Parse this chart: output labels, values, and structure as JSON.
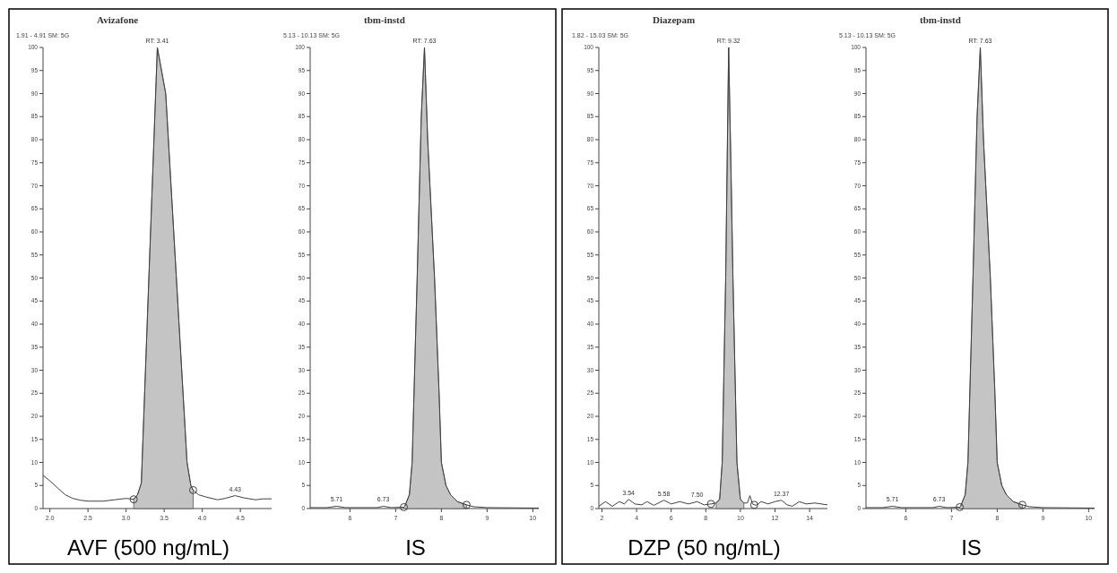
{
  "chart_data": [
    {
      "type": "line",
      "title": "Avizafone",
      "subtitle": "1.91 - 4.91  SM: 5G",
      "xlabel": "AVF (500 ng/mL)",
      "xlim": [
        1.91,
        4.91
      ],
      "xticks": [
        {
          "value": 2,
          "label": "2.0"
        },
        2.5,
        {
          "value": 3,
          "label": "3.0"
        },
        3.5,
        {
          "value": 4,
          "label": "4.0"
        },
        4.5
      ],
      "ylim": [
        0,
        100
      ],
      "yticks": [
        0,
        5,
        10,
        15,
        20,
        25,
        30,
        35,
        40,
        45,
        50,
        55,
        60,
        65,
        70,
        75,
        80,
        85,
        90,
        95,
        100
      ],
      "series": [
        {
          "type": "area",
          "color": "#c4c4c4",
          "x": [
            3.1,
            3.15,
            3.2,
            3.41,
            3.52,
            3.8,
            3.85,
            3.88
          ],
          "values": [
            2.0,
            3,
            5.5,
            100,
            90,
            10,
            5,
            4
          ]
        },
        {
          "type": "line",
          "color": "#404040",
          "x": [
            1.91,
            2.0,
            2.1,
            2.2,
            2.3,
            2.4,
            2.5,
            2.7,
            2.85,
            3.0,
            3.1,
            3.15,
            3.2,
            3.41,
            3.52,
            3.8,
            3.85,
            3.88,
            3.95,
            4.05,
            4.2,
            4.3,
            4.43,
            4.55,
            4.7,
            4.8,
            4.91
          ],
          "values": [
            7.2,
            6,
            4.5,
            3,
            2.2,
            1.8,
            1.6,
            1.6,
            1.9,
            2.2,
            2.0,
            3,
            5.5,
            100,
            90,
            10,
            5,
            4,
            3,
            2.5,
            1.9,
            2.2,
            2.8,
            2.3,
            1.9,
            2.1,
            2.1
          ]
        },
        {
          "type": "scatter",
          "marker": "circle",
          "color": "#404040",
          "x": [
            3.1,
            3.88
          ],
          "values": [
            2.0,
            4
          ]
        }
      ],
      "annotations": [
        {
          "text": "RT: 3.41",
          "x": 3.41,
          "y": 100
        },
        {
          "text": "4.43",
          "x": 4.43,
          "y": 2.8
        }
      ]
    },
    {
      "type": "line",
      "title": "tbm-instd",
      "subtitle": "5.13 - 10.13  SM: 5G",
      "xlabel": "IS",
      "xlim": [
        5.13,
        10.13
      ],
      "xticks": [
        6,
        7,
        8,
        9,
        10
      ],
      "ylim": [
        0,
        100
      ],
      "yticks": [
        0,
        5,
        10,
        15,
        20,
        25,
        30,
        35,
        40,
        45,
        50,
        55,
        60,
        65,
        70,
        75,
        80,
        85,
        90,
        95,
        100
      ],
      "series": [
        {
          "type": "area",
          "color": "#c4c4c4",
          "x": [
            7.18,
            7.2,
            7.3,
            7.36,
            7.47,
            7.56,
            7.63,
            7.7,
            7.85,
            7.95,
            8.0,
            8.1,
            8.2,
            8.35,
            8.55
          ],
          "values": [
            0.3,
            0.5,
            3,
            10,
            50,
            85,
            100,
            80,
            50,
            25,
            10,
            5,
            3,
            1.5,
            0.8
          ]
        },
        {
          "type": "line",
          "color": "#404040",
          "x": [
            5.13,
            5.5,
            5.71,
            5.9,
            6.3,
            6.6,
            6.73,
            6.9,
            7.18,
            7.2,
            7.3,
            7.36,
            7.47,
            7.56,
            7.63,
            7.7,
            7.85,
            7.95,
            8.0,
            8.1,
            8.2,
            8.35,
            8.55,
            8.7,
            9.0,
            10.13
          ],
          "values": [
            0.2,
            0.2,
            0.5,
            0.2,
            0.2,
            0.2,
            0.5,
            0.2,
            0.3,
            0.5,
            3,
            10,
            50,
            85,
            100,
            80,
            50,
            25,
            10,
            5,
            3,
            1.5,
            0.8,
            0.4,
            0.2,
            0.1
          ]
        },
        {
          "type": "scatter",
          "marker": "circle",
          "color": "#404040",
          "x": [
            7.18,
            8.55
          ],
          "values": [
            0.3,
            0.8
          ]
        }
      ],
      "annotations": [
        {
          "text": "RT: 7.63",
          "x": 7.63,
          "y": 100
        },
        {
          "text": "5.71",
          "x": 5.71,
          "y": 0.5
        },
        {
          "text": "6.73",
          "x": 6.73,
          "y": 0.5
        }
      ]
    },
    {
      "type": "line",
      "title": "Diazepam",
      "subtitle": "1.82 - 15.03  SM: 5G",
      "xlabel": "DZP (50 ng/mL)",
      "xlim": [
        1.82,
        15.03
      ],
      "xticks": [
        2,
        4,
        6,
        8,
        10,
        12,
        14
      ],
      "ylim": [
        0,
        100
      ],
      "yticks": [
        0,
        5,
        10,
        15,
        20,
        25,
        30,
        35,
        40,
        45,
        50,
        55,
        60,
        65,
        70,
        75,
        80,
        85,
        90,
        95,
        100
      ],
      "series": [
        {
          "type": "area",
          "color": "#c4c4c4",
          "x": [
            8.6,
            8.8,
            8.95,
            9.15,
            9.32,
            9.45,
            9.57,
            9.8,
            10.0,
            10.2
          ],
          "values": [
            1.2,
            2,
            10,
            50,
            100,
            75,
            50,
            10,
            2,
            1.2
          ]
        },
        {
          "type": "line",
          "color": "#404040",
          "x": [
            1.82,
            2.2,
            2.6,
            3.0,
            3.3,
            3.54,
            3.9,
            4.3,
            4.6,
            5.0,
            5.58,
            6.0,
            6.5,
            7.0,
            7.5,
            7.9,
            8.3,
            8.6,
            8.8,
            8.95,
            9.15,
            9.32,
            9.45,
            9.57,
            9.8,
            10.0,
            10.2,
            10.4,
            10.55,
            10.7,
            10.9,
            11.2,
            11.6,
            12.0,
            12.37,
            12.7,
            13.0,
            13.4,
            13.8,
            14.3,
            15.03
          ],
          "values": [
            0.5,
            1.5,
            0.5,
            1.5,
            1,
            2,
            1,
            0.8,
            1.5,
            0.7,
            1.8,
            1,
            1.5,
            1,
            1.5,
            0.8,
            1,
            1.2,
            2,
            10,
            50,
            100,
            75,
            50,
            10,
            2,
            1.2,
            1.2,
            2.8,
            1,
            0.7,
            1.5,
            1,
            1.5,
            1.8,
            0.8,
            0.5,
            1.5,
            1,
            1.2,
            0.8
          ]
        },
        {
          "type": "scatter",
          "marker": "circle",
          "color": "#404040",
          "x": [
            8.3,
            10.8
          ],
          "values": [
            1,
            0.8
          ]
        }
      ],
      "annotations": [
        {
          "text": "RT: 9.32",
          "x": 9.32,
          "y": 100
        },
        {
          "text": "3.54",
          "x": 3.54,
          "y": 2
        },
        {
          "text": "5.58",
          "x": 5.58,
          "y": 1.8
        },
        {
          "text": "7.50",
          "x": 7.5,
          "y": 1.5
        },
        {
          "text": "12.37",
          "x": 12.37,
          "y": 1.8
        }
      ]
    },
    {
      "type": "line",
      "title": "tbm-instd",
      "subtitle": "5.13 - 10.13  SM: 5G",
      "xlabel": "IS",
      "xlim": [
        5.13,
        10.13
      ],
      "xticks": [
        6,
        7,
        8,
        9,
        10
      ],
      "ylim": [
        0,
        100
      ],
      "yticks": [
        0,
        5,
        10,
        15,
        20,
        25,
        30,
        35,
        40,
        45,
        50,
        55,
        60,
        65,
        70,
        75,
        80,
        85,
        90,
        95,
        100
      ],
      "series": [
        {
          "type": "area",
          "color": "#c4c4c4",
          "x": [
            7.18,
            7.2,
            7.3,
            7.36,
            7.47,
            7.56,
            7.63,
            7.7,
            7.85,
            7.95,
            8.0,
            8.1,
            8.2,
            8.35,
            8.55
          ],
          "values": [
            0.3,
            0.5,
            3,
            10,
            50,
            85,
            100,
            80,
            50,
            25,
            10,
            5,
            3,
            1.5,
            0.8
          ]
        },
        {
          "type": "line",
          "color": "#404040",
          "x": [
            5.13,
            5.5,
            5.71,
            5.9,
            6.3,
            6.6,
            6.73,
            6.9,
            7.18,
            7.2,
            7.3,
            7.36,
            7.47,
            7.56,
            7.63,
            7.7,
            7.85,
            7.95,
            8.0,
            8.1,
            8.2,
            8.35,
            8.55,
            8.7,
            9.0,
            10.13
          ],
          "values": [
            0.2,
            0.2,
            0.5,
            0.2,
            0.2,
            0.2,
            0.5,
            0.2,
            0.3,
            0.5,
            3,
            10,
            50,
            85,
            100,
            80,
            50,
            25,
            10,
            5,
            3,
            1.5,
            0.8,
            0.4,
            0.2,
            0.1
          ]
        },
        {
          "type": "scatter",
          "marker": "circle",
          "color": "#404040",
          "x": [
            7.18,
            8.55
          ],
          "values": [
            0.3,
            0.8
          ]
        }
      ],
      "annotations": [
        {
          "text": "RT: 7.63",
          "x": 7.63,
          "y": 100
        },
        {
          "text": "5.71",
          "x": 5.71,
          "y": 0.5
        },
        {
          "text": "6.73",
          "x": 6.73,
          "y": 0.5
        }
      ]
    }
  ]
}
